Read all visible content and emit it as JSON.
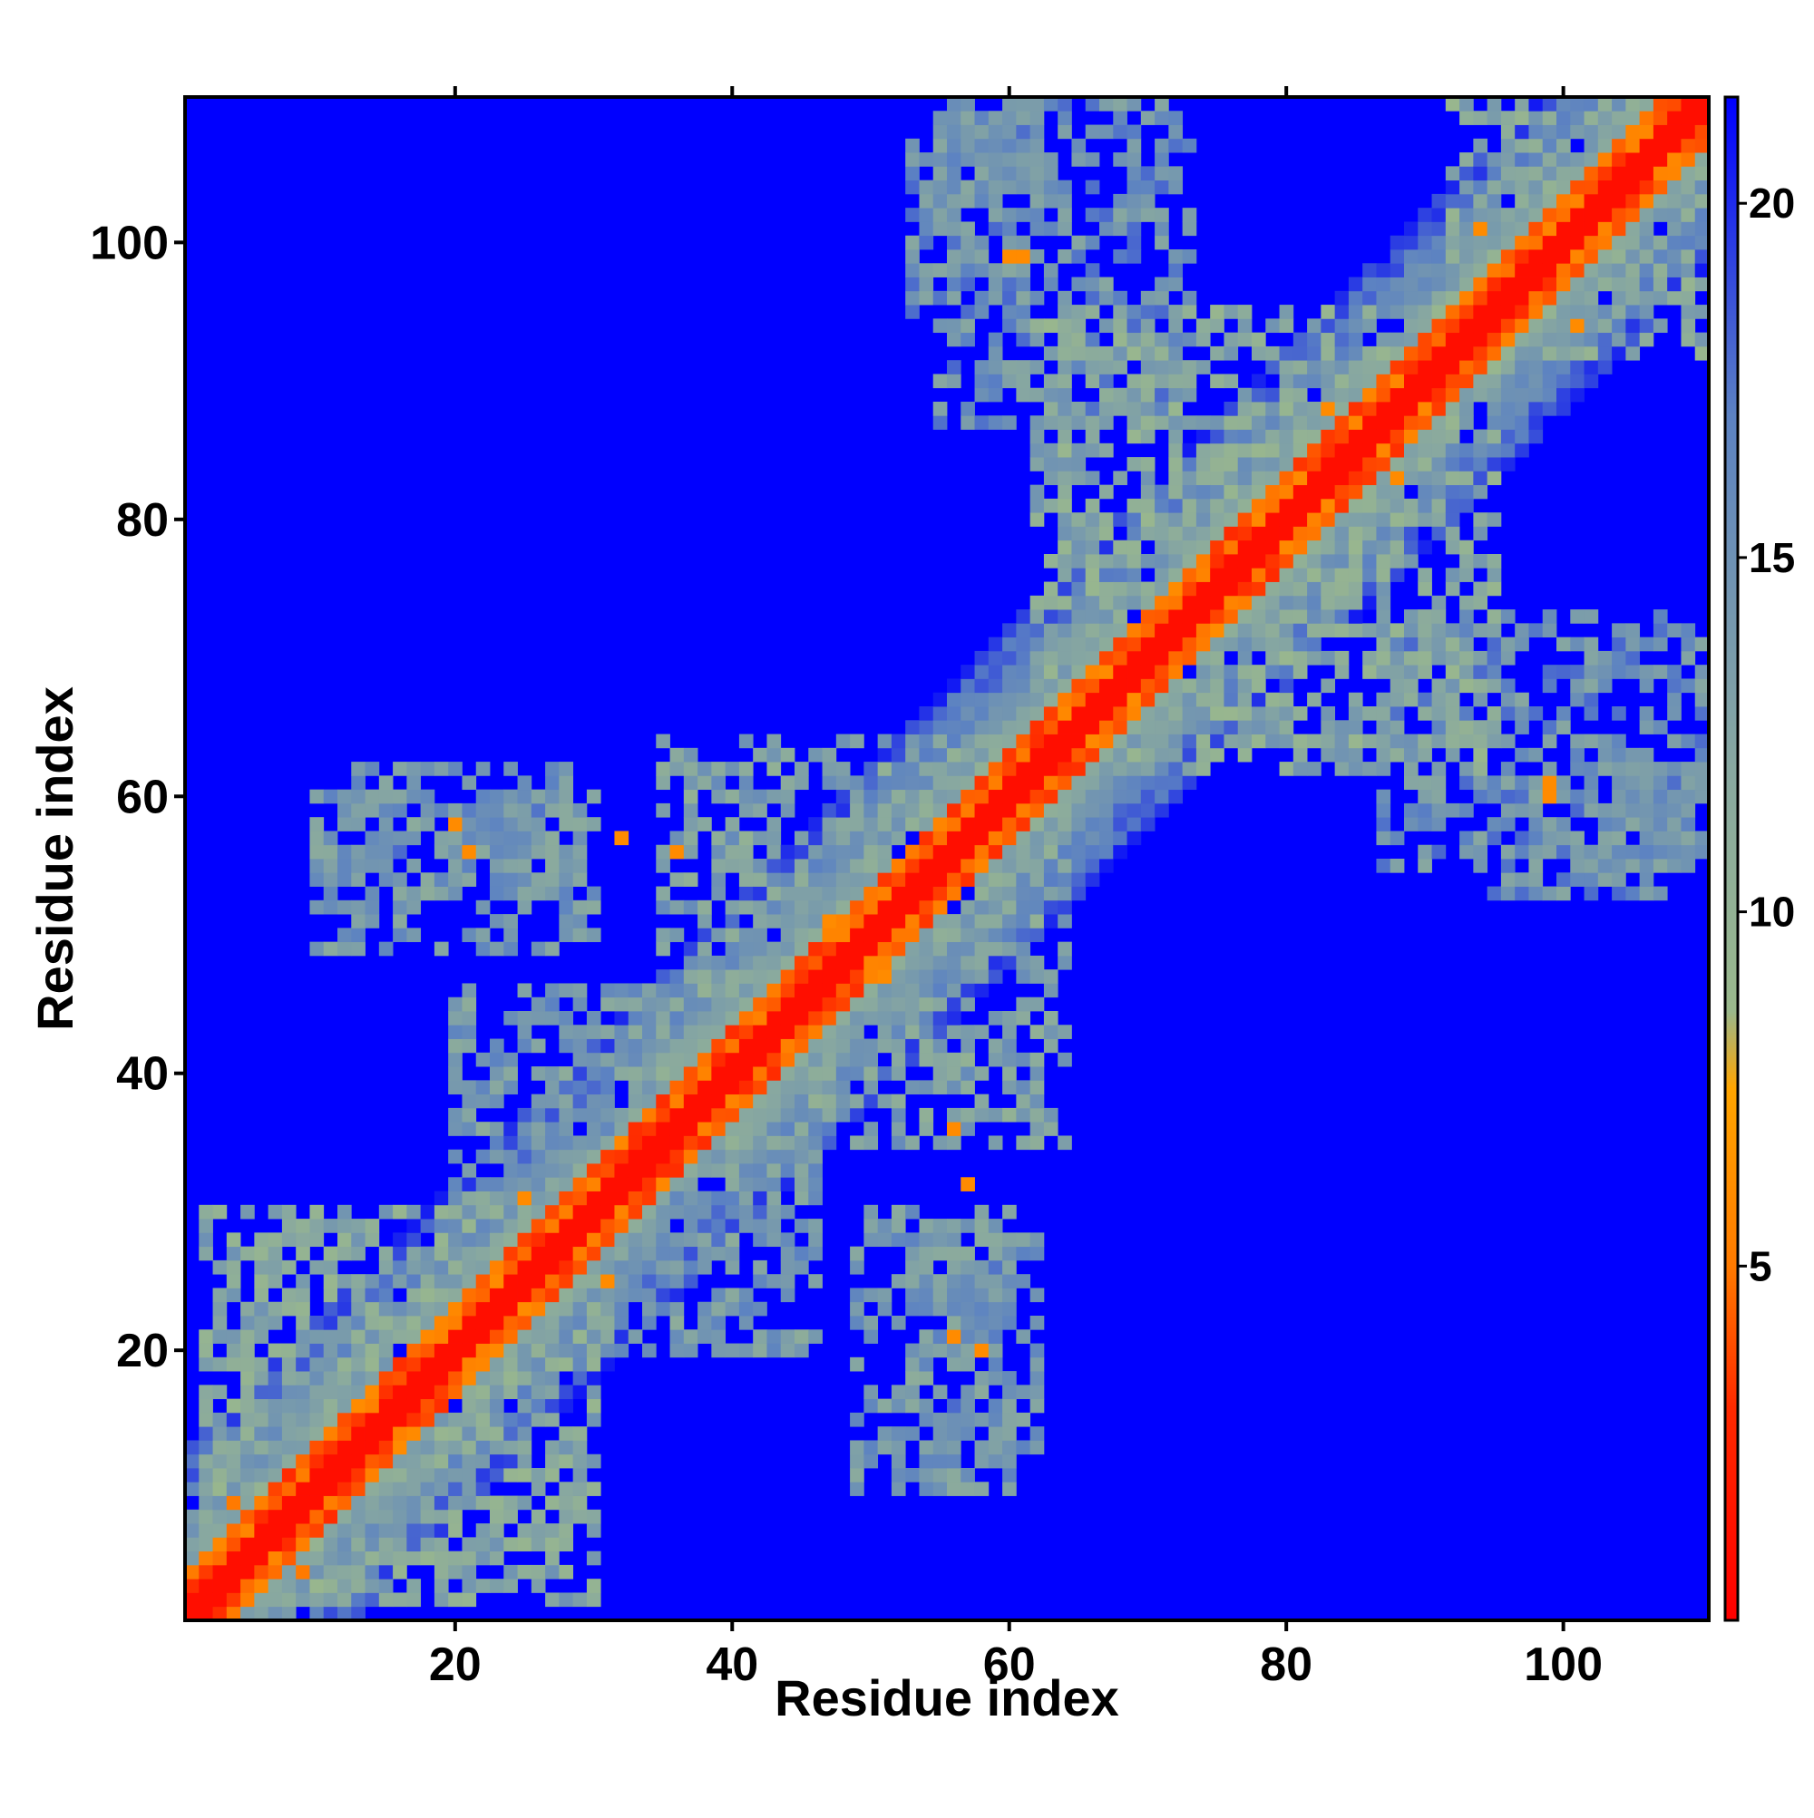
{
  "chart_data": {
    "type": "heatmap",
    "title": "",
    "xlabel": "Residue index",
    "ylabel": "Residue index",
    "n_residues": 110,
    "xlim": [
      0.5,
      110.5
    ],
    "ylim": [
      0.5,
      110.5
    ],
    "x_ticks": [
      20,
      40,
      60,
      80,
      100
    ],
    "y_ticks": [
      20,
      40,
      60,
      80,
      100
    ],
    "x_tick_labels": [
      "20",
      "40",
      "60",
      "80",
      "100"
    ],
    "y_tick_labels": [
      "20",
      "40",
      "60",
      "80",
      "100"
    ],
    "value_range": [
      0,
      21.5
    ],
    "colorbar": {
      "ticks": [
        5,
        10,
        15,
        20
      ],
      "tick_labels": [
        "5",
        "10",
        "15",
        "20"
      ],
      "placement": "right",
      "stops": [
        {
          "value": 0,
          "color": "#ff0000"
        },
        {
          "value": 3,
          "color": "#ff2a00"
        },
        {
          "value": 5,
          "color": "#ff7a00"
        },
        {
          "value": 7.5,
          "color": "#ffa500"
        },
        {
          "value": 8.6,
          "color": "#9ab88c"
        },
        {
          "value": 12,
          "color": "#88a8a0"
        },
        {
          "value": 17,
          "color": "#5c82c2"
        },
        {
          "value": 21.5,
          "color": "#0000ff"
        }
      ]
    },
    "background_value": 21.5,
    "diagonal_band": {
      "width_residues": 12
    },
    "contact_regions": [
      {
        "i": [
          2,
          30
        ],
        "j": [
          2,
          30
        ],
        "value": 11
      },
      {
        "i": [
          31,
          46
        ],
        "j": [
          20,
          36
        ],
        "value": 13
      },
      {
        "i": [
          49,
          60
        ],
        "j": [
          10,
          30
        ],
        "value": 13
      },
      {
        "i": [
          53,
          62
        ],
        "j": [
          94,
          110
        ],
        "value": 14
      },
      {
        "i": [
          36,
          64
        ],
        "j": [
          35,
          61
        ],
        "value": 12
      },
      {
        "i": [
          13,
          28
        ],
        "j": [
          54,
          62
        ],
        "value": 14
      },
      {
        "i": [
          87,
          110
        ],
        "j": [
          55,
          73
        ],
        "value": 14
      },
      {
        "i": [
          62,
          95
        ],
        "j": [
          62,
          95
        ],
        "value": 11
      },
      {
        "i": [
          92,
          110
        ],
        "j": [
          92,
          110
        ],
        "value": 11
      }
    ],
    "highlight_contacts": [
      {
        "i": 4,
        "j": 9,
        "value": 5
      },
      {
        "i": 25,
        "j": 31,
        "value": 6
      },
      {
        "i": 32,
        "j": 57,
        "value": 6
      },
      {
        "i": 47,
        "j": 51,
        "value": 6
      },
      {
        "i": 56,
        "j": 36,
        "value": 6
      },
      {
        "i": 56,
        "j": 21,
        "value": 6
      },
      {
        "i": 60,
        "j": 99,
        "value": 6
      },
      {
        "i": 99,
        "j": 61,
        "value": 6
      },
      {
        "i": 20,
        "j": 58,
        "value": 6
      },
      {
        "i": 83,
        "j": 88,
        "value": 6
      },
      {
        "i": 94,
        "j": 101,
        "value": 6
      }
    ],
    "noise_seed": 1337
  }
}
